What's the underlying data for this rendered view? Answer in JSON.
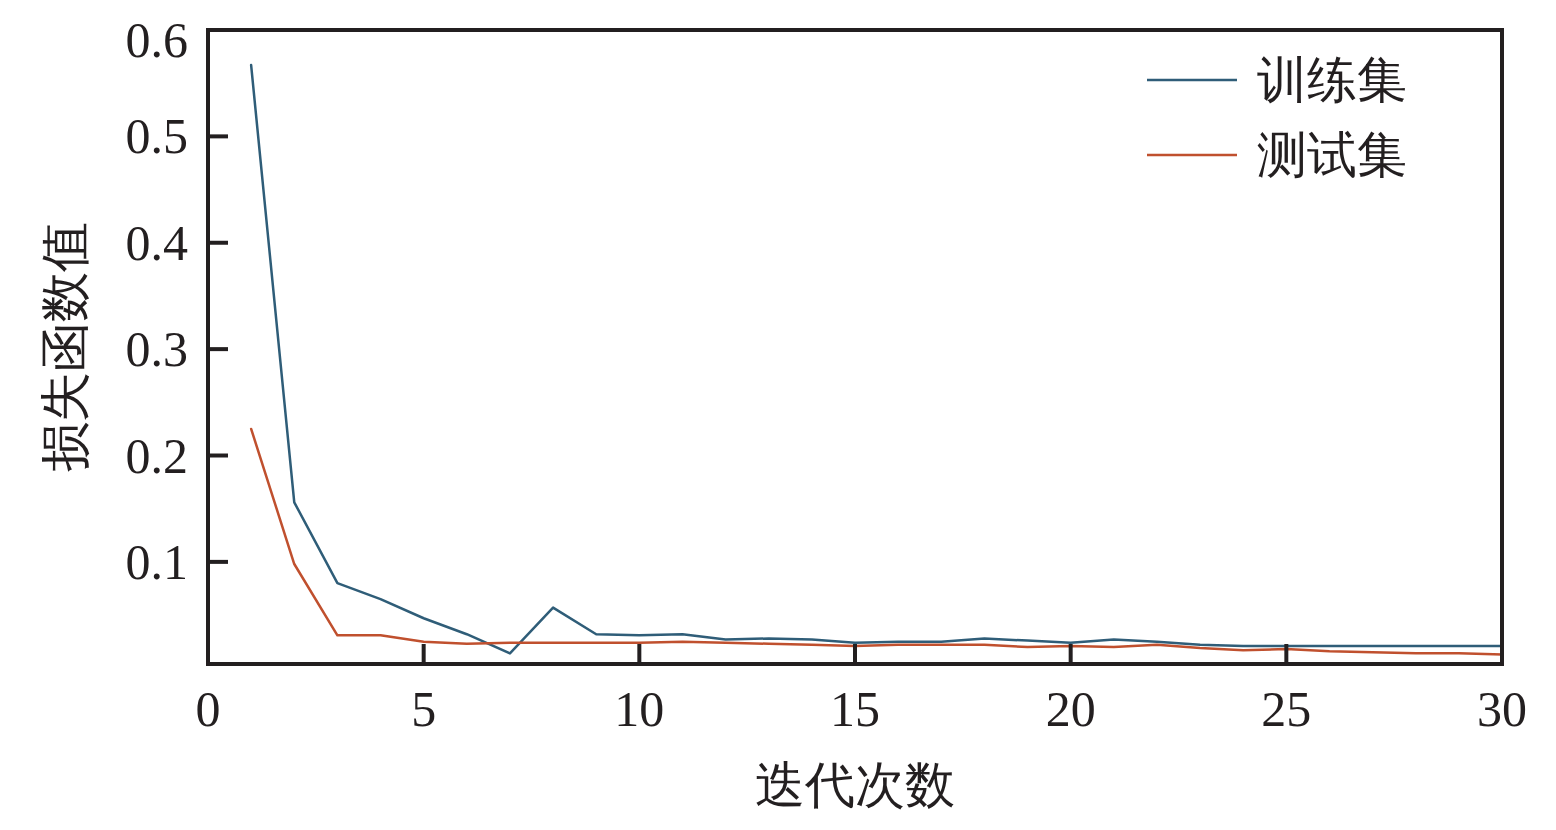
{
  "chart_data": {
    "type": "line",
    "xlabel": "迭代次数",
    "ylabel": "损失函数值",
    "x": [
      1,
      2,
      3,
      4,
      5,
      6,
      7,
      8,
      9,
      10,
      11,
      12,
      13,
      14,
      15,
      16,
      17,
      18,
      19,
      20,
      21,
      22,
      23,
      24,
      25,
      26,
      27,
      28,
      29,
      30
    ],
    "series": [
      {
        "name": "训练集",
        "color": "#2f5d78",
        "values": [
          0.567,
          0.156,
          0.08,
          0.065,
          0.047,
          0.032,
          0.014,
          0.057,
          0.032,
          0.031,
          0.032,
          0.027,
          0.028,
          0.027,
          0.024,
          0.025,
          0.025,
          0.028,
          0.026,
          0.024,
          0.027,
          0.025,
          0.022,
          0.021,
          0.021,
          0.021,
          0.021,
          0.021,
          0.021,
          0.021
        ]
      },
      {
        "name": "测试集",
        "color": "#c0502e",
        "values": [
          0.225,
          0.098,
          0.031,
          0.031,
          0.025,
          0.023,
          0.024,
          0.024,
          0.024,
          0.024,
          0.025,
          0.024,
          0.023,
          0.022,
          0.021,
          0.022,
          0.022,
          0.022,
          0.02,
          0.021,
          0.02,
          0.022,
          0.019,
          0.017,
          0.018,
          0.016,
          0.015,
          0.014,
          0.014,
          0.013
        ]
      }
    ],
    "xlim": [
      0,
      30
    ],
    "xticks": [
      0,
      5,
      10,
      15,
      20,
      25,
      30
    ],
    "ylim": [
      0.004,
      0.6
    ],
    "yticks": [
      0.1,
      0.2,
      0.3,
      0.4,
      0.5,
      0.6
    ],
    "grid": false,
    "legend": "top right",
    "marker": "none",
    "line_style": "solid"
  }
}
